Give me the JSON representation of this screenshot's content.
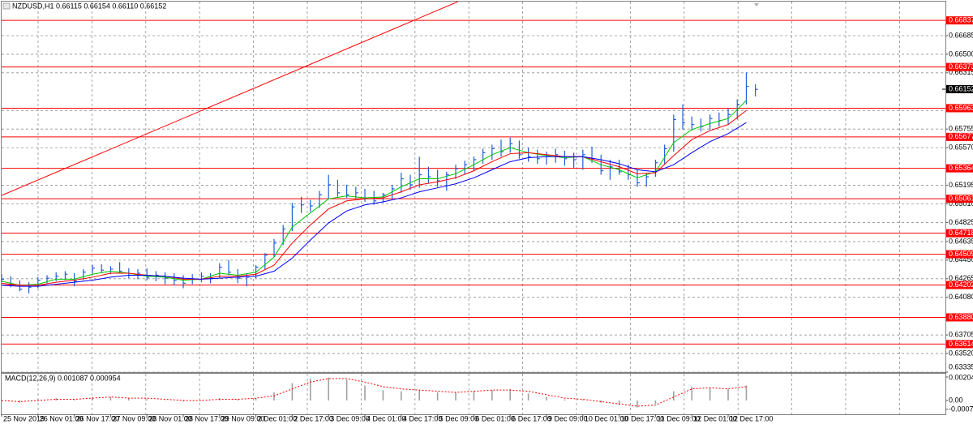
{
  "chart_data": [
    {
      "type": "ohlc",
      "title": "NZDUSD,H1  0.66115 0.66154 0.66110 0.66152",
      "bar_color": "#1f5fd8",
      "grid": true,
      "xlim": [
        0,
        415.7
      ],
      "ylim": [
        0.63335,
        0.67024
      ],
      "xticks": [
        {
          "value": 0,
          "label": "25 Nov 2019"
        },
        {
          "value": 16,
          "label": "26 Nov 01:00"
        },
        {
          "value": 32,
          "label": "26 Nov 17:00"
        },
        {
          "value": 48,
          "label": "27 Nov 09:00"
        },
        {
          "value": 64,
          "label": "28 Nov 01:00"
        },
        {
          "value": 80,
          "label": "28 Nov 17:00"
        },
        {
          "value": 96,
          "label": "29 Nov 09:00"
        },
        {
          "value": 112,
          "label": "2 Dec 01:00"
        },
        {
          "value": 128,
          "label": "2 Dec 17:00"
        },
        {
          "value": 144,
          "label": "3 Dec 09:00"
        },
        {
          "value": 160,
          "label": "4 Dec 01:00"
        },
        {
          "value": 176,
          "label": "4 Dec 17:00"
        },
        {
          "value": 192,
          "label": "5 Dec 09:00"
        },
        {
          "value": 208,
          "label": "6 Dec 01:00"
        },
        {
          "value": 224,
          "label": "6 Dec 17:00"
        },
        {
          "value": 240,
          "label": "9 Dec 09:00"
        },
        {
          "value": 256,
          "label": "10 Dec 01:00"
        },
        {
          "value": 272,
          "label": "10 Dec 17:00"
        },
        {
          "value": 288,
          "label": "11 Dec 09:00"
        },
        {
          "value": 304,
          "label": "12 Dec 01:00"
        },
        {
          "value": 320,
          "label": "12 Dec 17:00"
        }
      ],
      "yticks": [
        0.66685,
        {
          "value": 0.665,
          "label": "0.66500"
        },
        0.66315,
        {
          "value": 0.6594,
          "label": "0.65940"
        },
        0.65755,
        {
          "value": 0.6557,
          "label": "0.65570"
        },
        0.65195,
        {
          "value": 0.6501,
          "label": "0.65010"
        },
        0.64825,
        0.64635,
        {
          "value": 0.6445,
          "label": "0.64450"
        },
        0.64265,
        {
          "value": 0.6408,
          "label": "0.64080"
        },
        0.63705,
        {
          "value": 0.6352,
          "label": "0.63520"
        },
        0.63335
      ],
      "levels": [
        0.66837,
        0.66373,
        0.65963,
        0.65677,
        0.65364,
        0.65061,
        0.64718,
        0.64509,
        0.64202,
        {
          "value": 0.6388,
          "label": "0.63880"
        },
        0.63614
      ],
      "level_color": "#ff0000",
      "last_price": 0.66152,
      "trendline": {
        "color": "#ff0000",
        "x": [
          0,
          201
        ],
        "values": [
          0.65094,
          0.67024
        ]
      },
      "x": [
        0,
        4,
        8,
        12,
        16,
        20,
        24,
        28,
        32,
        36,
        40,
        44,
        48,
        52,
        56,
        60,
        64,
        68,
        72,
        76,
        80,
        84,
        88,
        92,
        96,
        100,
        104,
        108,
        112,
        116,
        120,
        124,
        128,
        132,
        136,
        140,
        144,
        148,
        152,
        156,
        160,
        164,
        168,
        172,
        176,
        180,
        184,
        188,
        192,
        196,
        200,
        204,
        208,
        212,
        216,
        220,
        224,
        228,
        232,
        236,
        240,
        244,
        248,
        252,
        256,
        260,
        264,
        268,
        272,
        276,
        280,
        284,
        288,
        292,
        296,
        300,
        304,
        308,
        312,
        316,
        320,
        324,
        328,
        332
      ],
      "high": [
        0.6431,
        0.6429,
        0.6425,
        0.6423,
        0.6428,
        0.643,
        0.6433,
        0.6434,
        0.6432,
        0.6436,
        0.644,
        0.6441,
        0.6439,
        0.6443,
        0.6437,
        0.6436,
        0.6437,
        0.6434,
        0.6433,
        0.6432,
        0.643,
        0.6431,
        0.6433,
        0.6432,
        0.6442,
        0.6445,
        0.6436,
        0.6432,
        0.644,
        0.6452,
        0.6466,
        0.648,
        0.6502,
        0.6508,
        0.6505,
        0.6514,
        0.653,
        0.6525,
        0.652,
        0.6518,
        0.6516,
        0.6514,
        0.6512,
        0.652,
        0.6532,
        0.653,
        0.6548,
        0.6538,
        0.6535,
        0.6533,
        0.654,
        0.6544,
        0.6548,
        0.6556,
        0.656,
        0.6565,
        0.6567,
        0.6564,
        0.6557,
        0.6555,
        0.6553,
        0.6556,
        0.6554,
        0.6552,
        0.6555,
        0.6558,
        0.655,
        0.6545,
        0.6545,
        0.654,
        0.6535,
        0.6532,
        0.6545,
        0.656,
        0.659,
        0.66,
        0.6588,
        0.6586,
        0.659,
        0.6592,
        0.6596,
        0.6605,
        0.6632,
        0.662
      ],
      "low": [
        0.6423,
        0.6418,
        0.6414,
        0.6412,
        0.6417,
        0.6422,
        0.6424,
        0.6425,
        0.6419,
        0.6425,
        0.6431,
        0.6432,
        0.6431,
        0.6432,
        0.6427,
        0.6426,
        0.6425,
        0.6424,
        0.6421,
        0.642,
        0.6417,
        0.6421,
        0.6423,
        0.6422,
        0.6427,
        0.643,
        0.6422,
        0.6419,
        0.6427,
        0.6436,
        0.6448,
        0.646,
        0.6474,
        0.6492,
        0.6493,
        0.6497,
        0.6506,
        0.6508,
        0.6507,
        0.6506,
        0.6503,
        0.65,
        0.6502,
        0.6506,
        0.6512,
        0.6515,
        0.6517,
        0.6522,
        0.6518,
        0.6514,
        0.6526,
        0.653,
        0.6534,
        0.6541,
        0.6545,
        0.6548,
        0.6552,
        0.6546,
        0.6543,
        0.6541,
        0.654,
        0.6542,
        0.6539,
        0.6537,
        0.6535,
        0.6542,
        0.653,
        0.6525,
        0.653,
        0.6525,
        0.6518,
        0.6518,
        0.6528,
        0.654,
        0.6553,
        0.6575,
        0.6574,
        0.6573,
        0.6575,
        0.6578,
        0.658,
        0.6585,
        0.66,
        0.6608
      ],
      "close": [
        0.6426,
        0.6421,
        0.6416,
        0.6418,
        0.6425,
        0.6427,
        0.6429,
        0.6431,
        0.6424,
        0.6433,
        0.6437,
        0.6435,
        0.6436,
        0.6434,
        0.643,
        0.6432,
        0.6428,
        0.643,
        0.6427,
        0.6425,
        0.6422,
        0.6426,
        0.6429,
        0.6427,
        0.6438,
        0.6433,
        0.6427,
        0.6428,
        0.6438,
        0.645,
        0.6462,
        0.6476,
        0.6498,
        0.65,
        0.6499,
        0.651,
        0.652,
        0.6512,
        0.651,
        0.6512,
        0.6507,
        0.6504,
        0.651,
        0.6516,
        0.6526,
        0.652,
        0.653,
        0.6528,
        0.6524,
        0.653,
        0.6536,
        0.654,
        0.6545,
        0.6552,
        0.6556,
        0.6553,
        0.6561,
        0.655,
        0.6548,
        0.6546,
        0.6549,
        0.655,
        0.6546,
        0.6545,
        0.655,
        0.6546,
        0.6534,
        0.6538,
        0.6533,
        0.653,
        0.6522,
        0.6528,
        0.6542,
        0.6556,
        0.6585,
        0.6582,
        0.658,
        0.6578,
        0.6586,
        0.6584,
        0.659,
        0.66,
        0.6618,
        0.6615
      ],
      "lines": [
        {
          "color": "#00c800",
          "x": [
            0,
            8,
            16,
            24,
            32,
            40,
            48,
            56,
            64,
            72,
            80,
            88,
            96,
            104,
            112,
            120,
            128,
            136,
            144,
            152,
            160,
            168,
            176,
            184,
            192,
            200,
            208,
            216,
            224,
            232,
            240,
            248,
            256,
            264,
            272,
            280,
            288,
            296,
            304,
            312,
            320,
            328
          ],
          "values": [
            0.6424,
            0.642,
            0.6421,
            0.6426,
            0.6426,
            0.6431,
            0.6434,
            0.6432,
            0.6429,
            0.6428,
            0.6425,
            0.6426,
            0.6432,
            0.643,
            0.6433,
            0.6448,
            0.6478,
            0.6492,
            0.6506,
            0.6509,
            0.6507,
            0.6508,
            0.6518,
            0.6526,
            0.6526,
            0.6531,
            0.654,
            0.655,
            0.6557,
            0.6552,
            0.6549,
            0.6547,
            0.6548,
            0.654,
            0.6535,
            0.6527,
            0.6533,
            0.6562,
            0.6575,
            0.6581,
            0.6586,
            0.6604
          ]
        },
        {
          "color": "#ff0000",
          "x": [
            0,
            8,
            16,
            24,
            32,
            40,
            48,
            56,
            64,
            72,
            80,
            88,
            96,
            104,
            112,
            120,
            128,
            136,
            144,
            152,
            160,
            168,
            176,
            184,
            192,
            200,
            208,
            216,
            224,
            232,
            240,
            248,
            256,
            264,
            272,
            280,
            288,
            296,
            304,
            312,
            320,
            328
          ],
          "values": [
            0.6422,
            0.642,
            0.642,
            0.6423,
            0.6425,
            0.6428,
            0.6432,
            0.6432,
            0.643,
            0.6429,
            0.6426,
            0.6426,
            0.6429,
            0.6429,
            0.6431,
            0.644,
            0.6462,
            0.648,
            0.6496,
            0.6504,
            0.6506,
            0.6507,
            0.6513,
            0.652,
            0.6523,
            0.6527,
            0.6534,
            0.6543,
            0.6551,
            0.6552,
            0.655,
            0.6548,
            0.6548,
            0.6543,
            0.6538,
            0.6531,
            0.6532,
            0.6549,
            0.6565,
            0.6574,
            0.658,
            0.6594
          ]
        },
        {
          "color": "#0000ff",
          "x": [
            0,
            8,
            16,
            24,
            32,
            40,
            48,
            56,
            64,
            72,
            80,
            88,
            96,
            104,
            112,
            120,
            128,
            136,
            144,
            152,
            160,
            168,
            176,
            184,
            192,
            200,
            208,
            216,
            224,
            232,
            240,
            248,
            256,
            264,
            272,
            280,
            288,
            296,
            304,
            312,
            320,
            328
          ],
          "values": [
            0.642,
            0.6419,
            0.6419,
            0.6421,
            0.6423,
            0.6425,
            0.6428,
            0.643,
            0.643,
            0.6429,
            0.6427,
            0.6426,
            0.6427,
            0.6428,
            0.6429,
            0.6434,
            0.6447,
            0.6465,
            0.6482,
            0.6494,
            0.65,
            0.6503,
            0.6507,
            0.6513,
            0.6517,
            0.6521,
            0.6527,
            0.6535,
            0.6543,
            0.6547,
            0.6548,
            0.6548,
            0.6548,
            0.6545,
            0.6541,
            0.6535,
            0.6533,
            0.654,
            0.6552,
            0.6563,
            0.6571,
            0.6582
          ]
        }
      ]
    },
    {
      "type": "macd",
      "title": "MACD(12,26,9) 0.001087 0.000954",
      "xlim": [
        0,
        415.7
      ],
      "ylim": [
        -0.0012,
        0.00232
      ],
      "yticks": [
        0.00204,
        {
          "value": 0,
          "label": "0.00"
        },
        -0.000769
      ],
      "color": "#a0a0a0",
      "x": [
        0,
        8,
        16,
        24,
        32,
        40,
        48,
        56,
        64,
        72,
        80,
        88,
        96,
        104,
        112,
        120,
        128,
        136,
        144,
        152,
        160,
        168,
        176,
        184,
        192,
        200,
        208,
        216,
        224,
        232,
        240,
        248,
        256,
        264,
        272,
        280,
        288,
        296,
        304,
        312,
        320,
        328
      ],
      "values": [
        0,
        -0.0002,
        0.0001,
        0.0002,
        0.0001,
        0.0003,
        0.0003,
        0.0002,
        0.0001,
        0,
        -0.0001,
        0,
        0.0002,
        0.0001,
        0.0002,
        0.0007,
        0.0015,
        0.0019,
        0.002,
        0.0018,
        0.0013,
        0.0009,
        0.0008,
        0.0009,
        0.0007,
        0.0007,
        0.0008,
        0.0009,
        0.001,
        0.0006,
        0.0003,
        0.0001,
        0.0001,
        -0.0002,
        -0.0004,
        -0.0006,
        -0.0003,
        0.0008,
        0.0012,
        0.0011,
        0.001,
        0.0013
      ],
      "signal": {
        "color": "#ff0000",
        "values": [
          0,
          -0.0001,
          0,
          0.0001,
          0.0001,
          0.0002,
          0.0003,
          0.0002,
          0.0002,
          0.0001,
          0,
          0,
          0.0001,
          0.0001,
          0.0002,
          0.0004,
          0.001,
          0.0016,
          0.0019,
          0.0019,
          0.0016,
          0.0012,
          0.001,
          0.0009,
          0.0008,
          0.0007,
          0.0008,
          0.0009,
          0.0009,
          0.0008,
          0.0005,
          0.0002,
          0.0001,
          -0.0001,
          -0.0003,
          -0.0005,
          -0.0004,
          0.0003,
          0.001,
          0.0011,
          0.001,
          0.0012
        ]
      }
    }
  ]
}
